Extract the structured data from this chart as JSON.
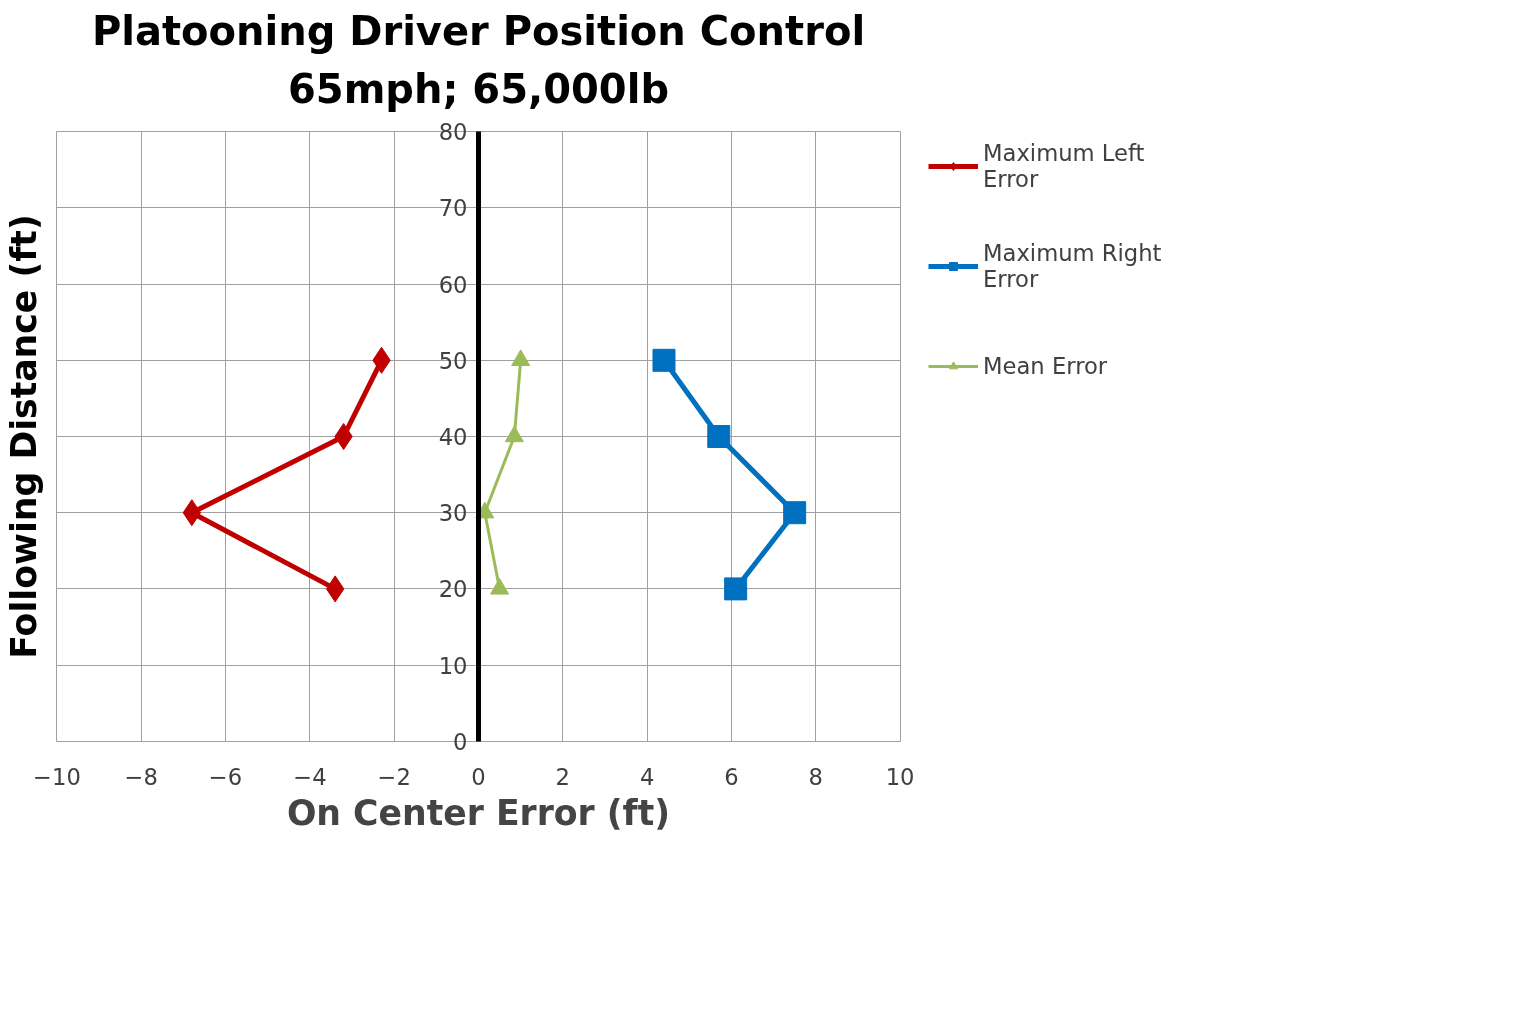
{
  "chart_data": {
    "type": "line",
    "title": "Platooning Driver Position Control",
    "subtitle": "65mph; 65,000lb",
    "xlabel": "On Center Error (ft)",
    "ylabel": "Following Distance (ft)",
    "series": [
      {
        "name": "Maximum Left Error",
        "color": "#c00000",
        "marker": "diamond",
        "x": [
          -2.3,
          -3.2,
          -6.8,
          -3.4
        ],
        "values": [
          50,
          40,
          30,
          20
        ]
      },
      {
        "name": "Maximum Right Error",
        "color": "#0070c0",
        "marker": "square",
        "x": [
          4.4,
          5.7,
          7.5,
          6.1
        ],
        "values": [
          50,
          40,
          30,
          20
        ]
      },
      {
        "name": "Mean Error",
        "color": "#9bbb59",
        "marker": "triangle",
        "x": [
          1.0,
          0.85,
          0.15,
          0.5
        ],
        "values": [
          50,
          40,
          30,
          20
        ]
      }
    ],
    "xlim": [
      -10,
      10
    ],
    "xticks": [
      -10,
      -8,
      -6,
      -4,
      -2,
      0,
      2,
      4,
      6,
      8,
      10
    ],
    "ylim": [
      0,
      80
    ],
    "yticks": [
      0,
      10,
      20,
      30,
      40,
      50,
      60,
      70,
      80
    ],
    "grid": true,
    "legend": "right"
  }
}
